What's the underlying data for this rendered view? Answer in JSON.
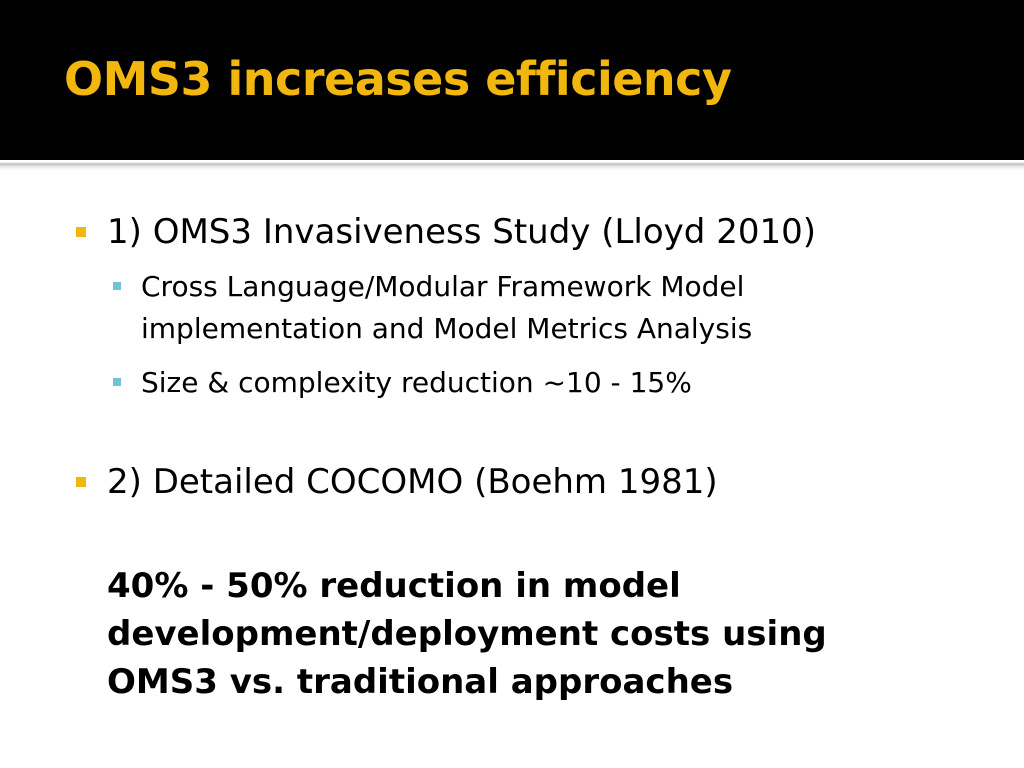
{
  "slide": {
    "title": "OMS3 increases efficiency",
    "items": [
      {
        "text": "1) OMS3 Invasiveness Study (Lloyd 2010)",
        "subitems": [
          "Cross Language/Modular Framework Model implementation and Model Metrics Analysis",
          "Size & complexity reduction ~10 - 15%"
        ]
      },
      {
        "text": "2) Detailed COCOMO (Boehm 1981)"
      }
    ],
    "conclusion": "40% - 50% reduction in model development/deployment costs using OMS3 vs. traditional approaches"
  },
  "colors": {
    "title": "#f2b70e",
    "level1_bullet": "#f2b70e",
    "level2_bullet": "#73c3d8",
    "header_background": "#000000"
  }
}
